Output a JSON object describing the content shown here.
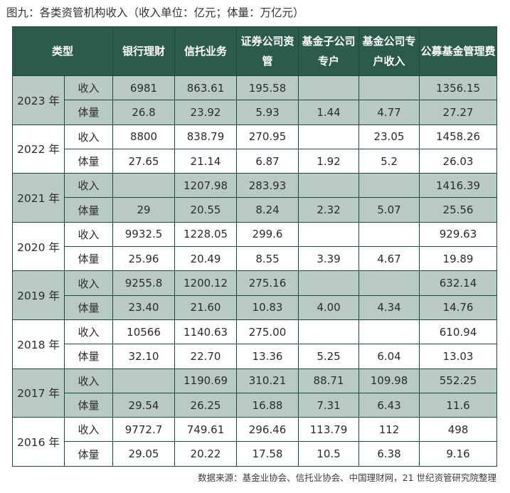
{
  "title": "图九：各类资管机构收入（收入单位：亿元；体量：万亿元）",
  "headers": {
    "type": "类型",
    "bank": "银行理财",
    "trust": "信托业务",
    "securities": "证券公司资管",
    "fund_sub": "基金子公司专户",
    "fund_account": "基金公司专户收入",
    "public_fund": "公募基金管理费"
  },
  "labels": {
    "revenue": "收入",
    "volume": "体量"
  },
  "years": [
    {
      "year": "2023 年",
      "revenue": [
        "6981",
        "863.61",
        "195.58",
        "",
        "",
        "1356.15"
      ],
      "volume": [
        "26.8",
        "23.92",
        "5.93",
        "1.44",
        "4.77",
        "27.27"
      ]
    },
    {
      "year": "2022 年",
      "revenue": [
        "8800",
        "838.79",
        "270.95",
        "",
        "23.05",
        "1458.26"
      ],
      "volume": [
        "27.65",
        "21.14",
        "6.87",
        "1.92",
        "5.2",
        "26.03"
      ]
    },
    {
      "year": "2021 年",
      "revenue": [
        "",
        "1207.98",
        "283.93",
        "",
        "",
        "1416.39"
      ],
      "volume": [
        "29",
        "20.55",
        "8.24",
        "2.32",
        "5.07",
        "25.56"
      ]
    },
    {
      "year": "2020 年",
      "revenue": [
        "9932.5",
        "1228.05",
        "299.6",
        "",
        "",
        "929.63"
      ],
      "volume": [
        "25.96",
        "20.49",
        "8.55",
        "3.39",
        "4.67",
        "19.89"
      ]
    },
    {
      "year": "2019 年",
      "revenue": [
        "9255.8",
        "1200.12",
        "275.16",
        "",
        "",
        "632.14"
      ],
      "volume": [
        "23.40",
        "21.60",
        "10.83",
        "4.00",
        "4.34",
        "14.76"
      ]
    },
    {
      "year": "2018 年",
      "revenue": [
        "10566",
        "1140.63",
        "275.00",
        "",
        "",
        "610.94"
      ],
      "volume": [
        "32.10",
        "22.70",
        "13.36",
        "5.25",
        "6.04",
        "13.03"
      ]
    },
    {
      "year": "2017 年",
      "revenue": [
        "",
        "1190.69",
        "310.21",
        "88.71",
        "109.98",
        "552.25"
      ],
      "volume": [
        "29.54",
        "26.25",
        "16.88",
        "7.31",
        "6.43",
        "11.6"
      ]
    },
    {
      "year": "2016 年",
      "revenue": [
        "9772.7",
        "749.61",
        "296.46",
        "113.79",
        "112",
        "498"
      ],
      "volume": [
        "29.05",
        "20.22",
        "17.58",
        "10.5",
        "6.38",
        "9.16"
      ]
    }
  ],
  "source": "数据来源：基金业协会、信托业协会、中国理财网，21 世纪资管研究院整理",
  "colors": {
    "header_bg": "#2d5b4a",
    "header_text": "#ffffff",
    "shade_row": "#b9cac6",
    "border": "#1d4a3c"
  }
}
